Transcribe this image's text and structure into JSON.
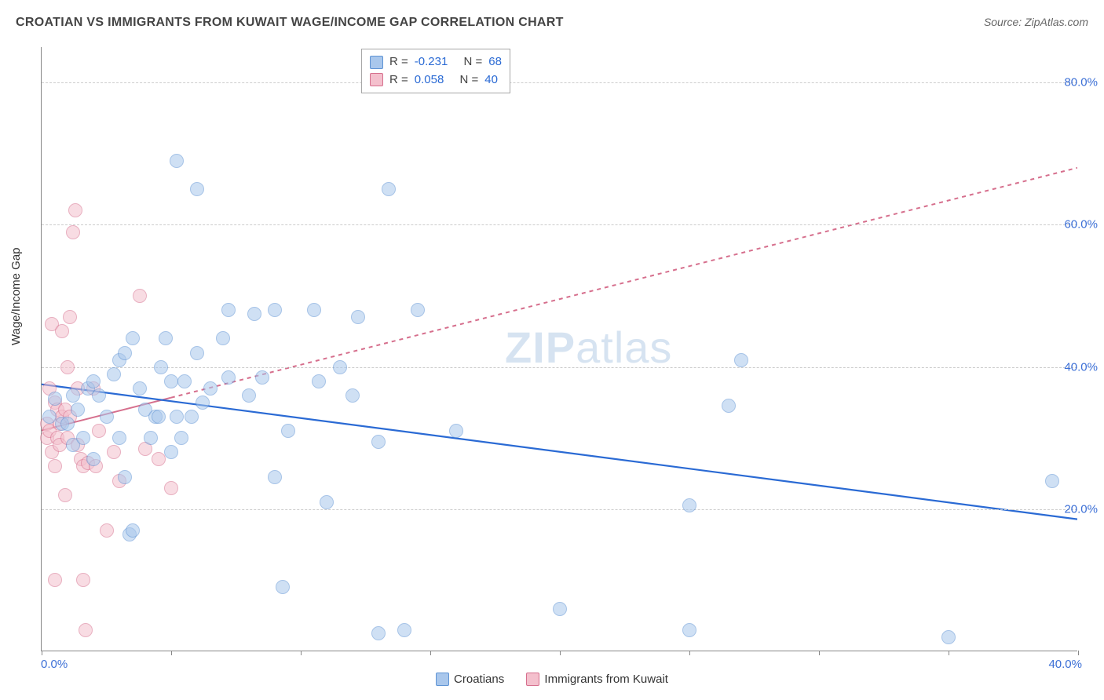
{
  "title": "CROATIAN VS IMMIGRANTS FROM KUWAIT WAGE/INCOME GAP CORRELATION CHART",
  "source": "Source: ZipAtlas.com",
  "y_axis_label": "Wage/Income Gap",
  "watermark": {
    "zip": "ZIP",
    "atlas": "atlas"
  },
  "chart": {
    "type": "scatter",
    "xlim": [
      0,
      40
    ],
    "ylim": [
      0,
      85
    ],
    "x_ticks": [
      0,
      5,
      10,
      15,
      20,
      25,
      30,
      35,
      40
    ],
    "x_tick_labels": {
      "left": "0.0%",
      "right": "40.0%"
    },
    "y_grid": [
      20,
      40,
      60,
      80
    ],
    "y_tick_labels": [
      "20.0%",
      "40.0%",
      "60.0%",
      "80.0%"
    ],
    "background_color": "#ffffff",
    "grid_color": "#cccccc",
    "axis_color": "#888888",
    "tick_label_color": "#3b6fd6",
    "point_radius": 9,
    "point_opacity": 0.55
  },
  "series": {
    "croatians": {
      "label": "Croatians",
      "fill": "#a9c7ec",
      "stroke": "#5e93d4",
      "trend": {
        "y_at_x0": 37.5,
        "y_at_xmax": 18.5,
        "color": "#2a6ad4",
        "width": 2.2,
        "dash": "none",
        "dash_from_x": null
      },
      "stats": {
        "R_label": "R =",
        "R": "-0.231",
        "N_label": "N =",
        "N": "68"
      },
      "points": [
        [
          0.3,
          33
        ],
        [
          0.5,
          35.5
        ],
        [
          0.8,
          32
        ],
        [
          1,
          32
        ],
        [
          1.2,
          29
        ],
        [
          1.2,
          36
        ],
        [
          1.4,
          34
        ],
        [
          1.6,
          30
        ],
        [
          1.8,
          37
        ],
        [
          2,
          38
        ],
        [
          2,
          27
        ],
        [
          2.2,
          36
        ],
        [
          2.5,
          33
        ],
        [
          2.8,
          39
        ],
        [
          3,
          30
        ],
        [
          3,
          41
        ],
        [
          3.2,
          42
        ],
        [
          3.5,
          44
        ],
        [
          3.8,
          37
        ],
        [
          4,
          34
        ],
        [
          3.2,
          24.5
        ],
        [
          3.4,
          16.5
        ],
        [
          3.5,
          17
        ],
        [
          4.2,
          30
        ],
        [
          4.4,
          33
        ],
        [
          4.5,
          33
        ],
        [
          4.6,
          40
        ],
        [
          4.8,
          44
        ],
        [
          5,
          38
        ],
        [
          5,
          28
        ],
        [
          5.2,
          69
        ],
        [
          5.2,
          33
        ],
        [
          5.4,
          30
        ],
        [
          5.5,
          38
        ],
        [
          5.8,
          33
        ],
        [
          6,
          65
        ],
        [
          6,
          42
        ],
        [
          6.2,
          35
        ],
        [
          6.5,
          37
        ],
        [
          7,
          44
        ],
        [
          7.2,
          48
        ],
        [
          7.2,
          38.5
        ],
        [
          8,
          36
        ],
        [
          8.2,
          47.5
        ],
        [
          8.5,
          38.5
        ],
        [
          9,
          24.5
        ],
        [
          9.3,
          9
        ],
        [
          9.5,
          31
        ],
        [
          9,
          48
        ],
        [
          10.5,
          48
        ],
        [
          10.7,
          38
        ],
        [
          11,
          21
        ],
        [
          11.5,
          40
        ],
        [
          12,
          36
        ],
        [
          12.2,
          47
        ],
        [
          13.4,
          65
        ],
        [
          13,
          2.5
        ],
        [
          14,
          3
        ],
        [
          13,
          29.5
        ],
        [
          14.5,
          48
        ],
        [
          16,
          31
        ],
        [
          20,
          6
        ],
        [
          25,
          20.5
        ],
        [
          25,
          3
        ],
        [
          26.5,
          34.5
        ],
        [
          27,
          41
        ],
        [
          35,
          2
        ],
        [
          39,
          24
        ]
      ]
    },
    "kuwait": {
      "label": "Immigrants from Kuwait",
      "fill": "#f4c0cd",
      "stroke": "#d66f8d",
      "trend": {
        "y_at_x0": 31,
        "y_at_xmax": 68,
        "color": "#d66f8d",
        "width": 2,
        "dash": "5,5",
        "dash_from_x": 5
      },
      "stats": {
        "R_label": "R =",
        "R": "0.058",
        "N_label": "N =",
        "N": "40"
      },
      "points": [
        [
          0.2,
          32
        ],
        [
          0.2,
          30
        ],
        [
          0.3,
          37
        ],
        [
          0.3,
          31
        ],
        [
          0.4,
          28
        ],
        [
          0.4,
          46
        ],
        [
          0.5,
          26
        ],
        [
          0.5,
          35
        ],
        [
          0.6,
          30
        ],
        [
          0.6,
          34
        ],
        [
          0.7,
          32
        ],
        [
          0.7,
          29
        ],
        [
          0.8,
          45
        ],
        [
          0.8,
          33
        ],
        [
          0.9,
          34
        ],
        [
          0.9,
          22
        ],
        [
          1,
          30
        ],
        [
          1,
          40
        ],
        [
          1.1,
          47
        ],
        [
          1.1,
          33
        ],
        [
          1.2,
          59
        ],
        [
          1.3,
          62
        ],
        [
          1.4,
          37
        ],
        [
          1.4,
          29
        ],
        [
          1.5,
          27
        ],
        [
          1.6,
          26
        ],
        [
          1.8,
          26.5
        ],
        [
          1.6,
          10
        ],
        [
          1.7,
          3
        ],
        [
          0.5,
          10
        ],
        [
          2,
          37
        ],
        [
          2.2,
          31
        ],
        [
          2.5,
          17
        ],
        [
          2.8,
          28
        ],
        [
          3,
          24
        ],
        [
          2.1,
          26
        ],
        [
          3.8,
          50
        ],
        [
          4,
          28.5
        ],
        [
          4.5,
          27
        ],
        [
          5,
          23
        ]
      ]
    }
  }
}
